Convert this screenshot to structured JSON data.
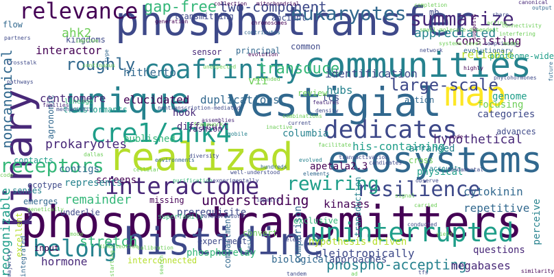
{
  "colors": {
    "background": "#ffffff",
    "palette": [
      "#440154",
      "#482878",
      "#3e4989",
      "#31688e",
      "#26828e",
      "#1f9e89",
      "#35b779",
      "#6ece58",
      "#b5de2b",
      "#fde725"
    ]
  },
  "words": [
    {
      "text": "phosphotransmitters",
      "color": "#440154"
    },
    {
      "text": "phosphotransfer",
      "color": "#3e4989"
    },
    {
      "text": "vestigial",
      "color": "#31688e"
    },
    {
      "text": "binary",
      "color": "#482878"
    },
    {
      "text": "ecosystems",
      "color": "#31688e"
    },
    {
      "text": "histidine",
      "color": "#3e4989"
    },
    {
      "text": "realized",
      "color": "#b5de2b"
    },
    {
      "text": "communities",
      "color": "#26828e"
    },
    {
      "text": "unique",
      "color": "#26828e"
    },
    {
      "text": "map",
      "color": "#fde725"
    },
    {
      "text": "cre1/ahk4",
      "color": "#1f9e89"
    },
    {
      "text": "dedicates",
      "color": "#3e4989"
    },
    {
      "text": "coaffinity",
      "color": "#26828e"
    },
    {
      "text": "uninterrupted",
      "color": "#1f9e89"
    },
    {
      "text": "interactome",
      "color": "#482878"
    },
    {
      "text": "relevance",
      "color": "#440154"
    },
    {
      "text": "belong",
      "color": "#26828e"
    },
    {
      "text": "resilience",
      "color": "#3e4989"
    },
    {
      "text": "rewiring",
      "color": "#1f9e89"
    },
    {
      "text": "receptors",
      "color": "#35b779"
    },
    {
      "text": "eukaryotes",
      "color": "#31688e"
    },
    {
      "text": "summarize",
      "color": "#482878"
    },
    {
      "text": "transduce",
      "color": "#35b779"
    },
    {
      "text": "large-scale",
      "color": "#3e4989"
    },
    {
      "text": "gap-free",
      "color": "#35b779"
    },
    {
      "text": "two-component",
      "color": "#3e4989"
    },
    {
      "text": "roughly",
      "color": "#31688e"
    },
    {
      "text": "appreciated",
      "color": "#26828e"
    },
    {
      "text": "understanding",
      "color": "#440154"
    },
    {
      "text": "phospho-accepting",
      "color": "#26828e"
    },
    {
      "text": "remainder",
      "color": "#35b779"
    },
    {
      "text": "noncanonical",
      "color": "#31688e"
    },
    {
      "text": "recognizable",
      "color": "#1f9e89"
    },
    {
      "text": "stretch",
      "color": "#35b779"
    },
    {
      "text": "pleiotropically",
      "color": "#3e4989"
    },
    {
      "text": "megabases",
      "color": "#482878"
    },
    {
      "text": "hypothetical",
      "color": "#482878"
    },
    {
      "text": "hitherto",
      "color": "#31688e"
    },
    {
      "text": "elucidated",
      "color": "#440154"
    },
    {
      "text": "duplications",
      "color": "#31688e"
    },
    {
      "text": "prokaryotes",
      "color": "#482878"
    },
    {
      "text": "apetala2.3",
      "color": "#440154"
    },
    {
      "text": "interactor",
      "color": "#440154"
    },
    {
      "text": "identification",
      "color": "#3e4989"
    },
    {
      "text": "centromere",
      "color": "#482878"
    },
    {
      "text": "ahk2",
      "color": "#6ece58"
    },
    {
      "text": "hormone",
      "color": "#482878"
    },
    {
      "text": "prerequisite",
      "color": "#3e4989"
    },
    {
      "text": "repetitive",
      "color": "#31688e"
    },
    {
      "text": "perceive",
      "color": "#26828e"
    },
    {
      "text": "cytokinin",
      "color": "#31688e"
    },
    {
      "text": "consisting",
      "color": "#440154"
    },
    {
      "text": "reliable",
      "color": "#b5de2b"
    },
    {
      "text": "focusing",
      "color": "#6ece58"
    },
    {
      "text": "categories",
      "color": "#3e4989"
    },
    {
      "text": "arranged",
      "color": "#26828e"
    },
    {
      "text": "physical",
      "color": "#1f9e89"
    },
    {
      "text": "contigs",
      "color": "#31688e"
    },
    {
      "text": "screens",
      "color": "#440154"
    },
    {
      "text": "represents",
      "color": "#26828e"
    },
    {
      "text": "hypothesis-driven",
      "color": "#b5de2b"
    },
    {
      "text": "phosphorelay",
      "color": "#35b779"
    },
    {
      "text": "biological",
      "color": "#31688e"
    },
    {
      "text": "approaches",
      "color": "#3e4989"
    },
    {
      "text": "interconnected",
      "color": "#b5de2b"
    },
    {
      "text": "questions",
      "color": "#482878"
    },
    {
      "text": "kinases",
      "color": "#440154"
    },
    {
      "text": "his-containing",
      "color": "#1f9e89"
    },
    {
      "text": "tcs",
      "color": "#3e4989"
    },
    {
      "text": "hubs",
      "color": "#26828e"
    },
    {
      "text": "vii",
      "color": "#6ece58"
    },
    {
      "text": "hook",
      "color": "#482878"
    },
    {
      "text": "columbia",
      "color": "#26828e"
    },
    {
      "text": "comparison",
      "color": "#31688e"
    },
    {
      "text": "transduction",
      "color": "#26828e"
    },
    {
      "text": "difficult",
      "color": "#482878"
    },
    {
      "text": "published",
      "color": "#35b779"
    },
    {
      "text": "genome",
      "color": "#1f9e89"
    },
    {
      "text": "advances",
      "color": "#3e4989"
    },
    {
      "text": "missing",
      "color": "#440154"
    },
    {
      "text": "experiment",
      "color": "#3e4989"
    },
    {
      "text": "exclusive",
      "color": "#35b779"
    },
    {
      "text": "convert",
      "color": "#6ece58"
    },
    {
      "text": "input",
      "color": "#440154"
    },
    {
      "text": "ecotype",
      "color": "#3e4989"
    },
    {
      "text": "emerges",
      "color": "#31688e"
    },
    {
      "text": "excellent",
      "color": "#b5de2b"
    },
    {
      "text": "contacts",
      "color": "#1f9e89"
    },
    {
      "text": "underlie",
      "color": "#3e4989"
    },
    {
      "text": "senses",
      "color": "#26828e"
    },
    {
      "text": "principal",
      "color": "#31688e"
    },
    {
      "text": "common",
      "color": "#3e4989"
    },
    {
      "text": "review",
      "color": "#6ece58"
    },
    {
      "text": "cross",
      "color": "#6ece58"
    },
    {
      "text": "account",
      "color": "#26828e"
    },
    {
      "text": "mb",
      "color": "#3e4989"
    },
    {
      "text": "fashion",
      "color": "#482878"
    },
    {
      "text": "agronomic",
      "color": "#31688e"
    },
    {
      "text": "kingdoms",
      "color": "#3e4989"
    },
    {
      "text": "transmitting",
      "color": "#3e4989"
    },
    {
      "text": "ancient",
      "color": "#3e4989"
    },
    {
      "text": "flow",
      "color": "#31688e"
    },
    {
      "text": "sensor",
      "color": "#482878"
    },
    {
      "text": "transformants",
      "color": "#1f9e89"
    },
    {
      "text": "lineage",
      "color": "#35b779"
    },
    {
      "text": "superfamily",
      "color": "#35b779"
    },
    {
      "text": "compartment",
      "color": "#31688e"
    },
    {
      "text": "integrated",
      "color": "#31688e"
    },
    {
      "text": "action",
      "color": "#31688e"
    },
    {
      "text": "collection",
      "color": "#440154"
    },
    {
      "text": "mitochondrial",
      "color": "#440154"
    },
    {
      "text": "chromosomes",
      "color": "#440154"
    },
    {
      "text": "generation",
      "color": "#440154"
    },
    {
      "text": "evolutionary",
      "color": "#31688e"
    },
    {
      "text": "network",
      "color": "#3e4989"
    },
    {
      "text": "proteome-wide",
      "color": "#1f9e89"
    },
    {
      "text": "highly",
      "color": "#440154"
    },
    {
      "text": "families",
      "color": "#482878"
    },
    {
      "text": "mechanistic",
      "color": "#3e4989"
    },
    {
      "text": "nontranscription-mediated",
      "color": "#3e4989"
    },
    {
      "text": "diversity",
      "color": "#3e4989"
    },
    {
      "text": "environments",
      "color": "#31688e"
    },
    {
      "text": "cellular",
      "color": "#6ece58"
    },
    {
      "text": "dallas",
      "color": "#6ece58"
    },
    {
      "text": "candidates",
      "color": "#3e4989"
    },
    {
      "text": "transactivation",
      "color": "#3e4989"
    },
    {
      "text": "elements",
      "color": "#31688e"
    },
    {
      "text": "fundamental",
      "color": "#3e4989"
    },
    {
      "text": "observe",
      "color": "#3e4989"
    },
    {
      "text": "similarity",
      "color": "#440154"
    },
    {
      "text": "tfs",
      "color": "#3e4989"
    },
    {
      "text": "tandem",
      "color": "#3e4989"
    },
    {
      "text": "starting",
      "color": "#6ece58"
    },
    {
      "text": "search",
      "color": "#6ece58"
    },
    {
      "text": "overexpressors",
      "color": "#3e4989"
    },
    {
      "text": "residue",
      "color": "#31688e"
    },
    {
      "text": "select",
      "color": "#3e4989"
    },
    {
      "text": "yield",
      "color": "#6ece58"
    },
    {
      "text": "conducted",
      "color": "#3e4989"
    },
    {
      "text": "carried",
      "color": "#6ece58"
    },
    {
      "text": "signal",
      "color": "#6ece58"
    },
    {
      "text": "impairs",
      "color": "#3e4989"
    },
    {
      "text": "purification",
      "color": "#35b779"
    },
    {
      "text": "experimentally",
      "color": "#3e4989"
    },
    {
      "text": "well-understood",
      "color": "#3e4989"
    },
    {
      "text": "hundreds",
      "color": "#31688e"
    },
    {
      "text": "evolved",
      "color": "#26828e"
    },
    {
      "text": "framework",
      "color": "#6ece58"
    },
    {
      "text": "inactive",
      "color": "#6ece58"
    },
    {
      "text": "mobile",
      "color": "#26828e"
    },
    {
      "text": "assemblies",
      "color": "#482878"
    },
    {
      "text": "current",
      "color": "#3e4989"
    },
    {
      "text": "combinations",
      "color": "#6ece58"
    },
    {
      "text": "features",
      "color": "#482878"
    },
    {
      "text": "density",
      "color": "#3e4989"
    },
    {
      "text": "connectivity",
      "color": "#6ece58"
    },
    {
      "text": "output",
      "color": "#31688e"
    },
    {
      "text": "share",
      "color": "#3e4989"
    },
    {
      "text": "canonical",
      "color": "#482878"
    },
    {
      "text": "completion",
      "color": "#6ece58"
    },
    {
      "text": "interfering",
      "color": "#6ece58"
    },
    {
      "text": "comprising",
      "color": "#3e4989"
    },
    {
      "text": "future",
      "color": "#31688e"
    },
    {
      "text": "a-type",
      "color": "#31688e"
    },
    {
      "text": "improve",
      "color": "#6ece58"
    },
    {
      "text": "partners",
      "color": "#3e4989"
    },
    {
      "text": "pathways",
      "color": "#3e4989"
    },
    {
      "text": "crosstalk",
      "color": "#3e4989"
    },
    {
      "text": "unexpected",
      "color": "#6ece58"
    },
    {
      "text": "evolution",
      "color": "#440154"
    },
    {
      "text": "systems-level",
      "color": "#6ece58"
    },
    {
      "text": "model",
      "color": "#6ece58"
    },
    {
      "text": "acting",
      "color": "#6ece58"
    },
    {
      "text": "small-molecule-dependent",
      "color": "#6ece58"
    },
    {
      "text": "phytohormones",
      "color": "#3e4989"
    },
    {
      "text": "suggests",
      "color": "#440154"
    },
    {
      "text": "contributes",
      "color": "#31688e"
    },
    {
      "text": "continuous",
      "color": "#6ece58"
    },
    {
      "text": "extended",
      "color": "#6ece58"
    },
    {
      "text": "facilitate",
      "color": "#6ece58"
    },
    {
      "text": "node",
      "color": "#440154"
    },
    {
      "text": "code",
      "color": "#6ece58"
    },
    {
      "text": "mode",
      "color": "#6ece58"
    },
    {
      "text": "majority",
      "color": "#3e4989"
    },
    {
      "text": "genetically",
      "color": "#6ece58"
    },
    {
      "text": "calibration",
      "color": "#6ece58"
    },
    {
      "text": "dinucleotide",
      "color": "#6ece58"
    },
    {
      "text": "ad",
      "color": "#6ece58"
    }
  ]
}
